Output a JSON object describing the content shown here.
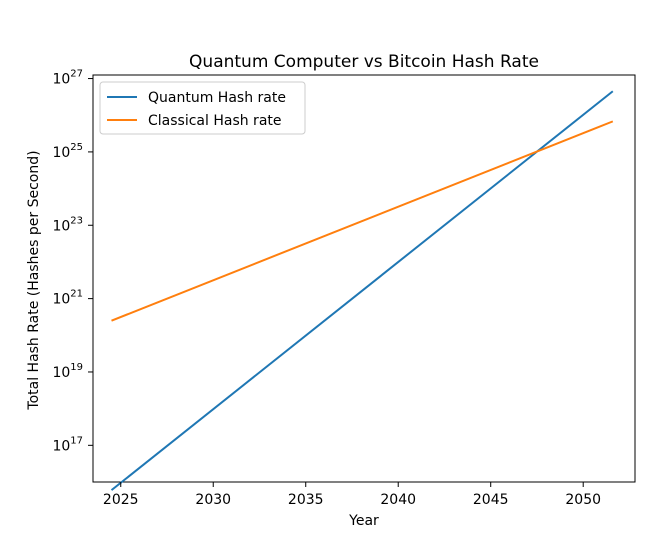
{
  "chart_data": {
    "type": "line",
    "title": "Quantum Computer vs Bitcoin Hash Rate",
    "xlabel": "Year",
    "ylabel": "Total Hash Rate (Hashes per Second)",
    "y_scale": "log",
    "xlim": [
      2023.5,
      2052.8
    ],
    "ylim": [
      1e+16,
      1.25e+27
    ],
    "x_ticks": [
      2025,
      2030,
      2035,
      2040,
      2045,
      2050
    ],
    "y_ticks": [
      {
        "value": 1e+17,
        "base": "10",
        "exp": "17"
      },
      {
        "value": 1e+19,
        "base": "10",
        "exp": "19"
      },
      {
        "value": 1e+21,
        "base": "10",
        "exp": "21"
      },
      {
        "value": 1e+23,
        "base": "10",
        "exp": "23"
      },
      {
        "value": 1e+25,
        "base": "10",
        "exp": "25"
      },
      {
        "value": 1e+27,
        "base": "10",
        "exp": "27"
      }
    ],
    "grid": false,
    "legend_position": "top-left",
    "series": [
      {
        "name": "Quantum Hash rate",
        "color": "#1f77b4",
        "x": [
          2024.5,
          2051.6
        ],
        "y": [
          6000000000000000.0,
          4.5e+26
        ]
      },
      {
        "name": "Classical Hash rate",
        "color": "#ff7f0e",
        "x": [
          2024.5,
          2051.6
        ],
        "y": [
          2.5e+20,
          6.8e+25
        ]
      }
    ]
  }
}
